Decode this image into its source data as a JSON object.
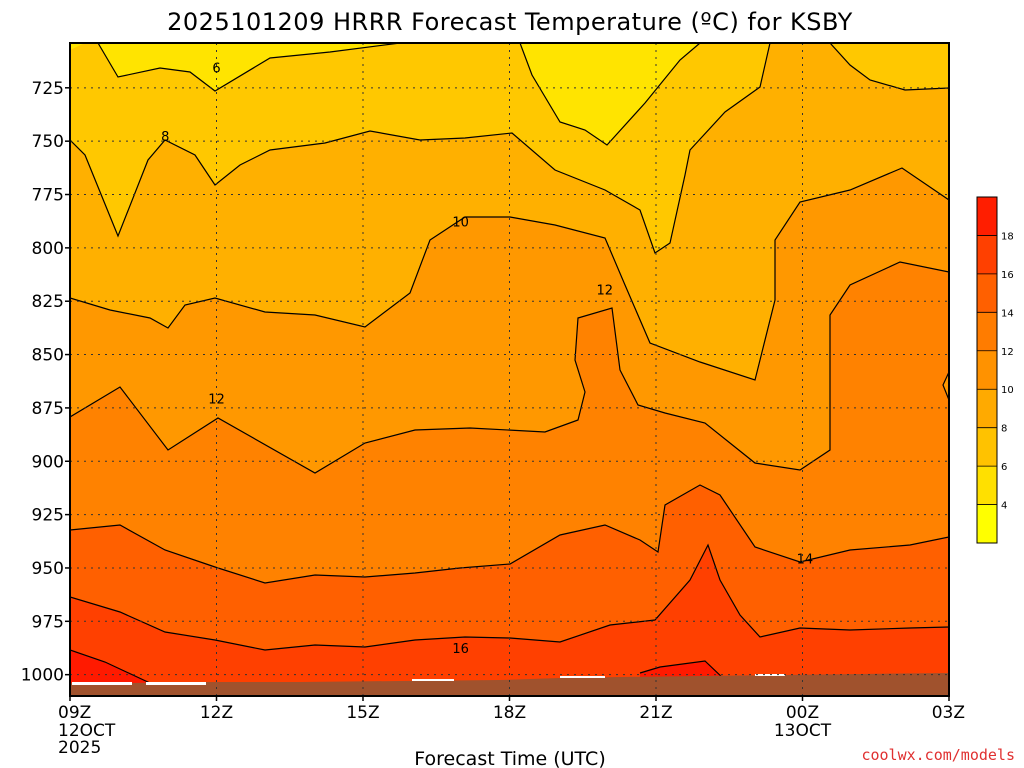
{
  "chart_data": {
    "type": "contour",
    "title": "2025101209 HRRR Forecast Temperature (ºC) for KSBY",
    "xlabel": "Forecast Time (UTC)",
    "x_ticks": [
      {
        "label": "09Z",
        "sub": [
          "12OCT",
          "2025"
        ]
      },
      {
        "label": "12Z",
        "sub": []
      },
      {
        "label": "15Z",
        "sub": []
      },
      {
        "label": "18Z",
        "sub": []
      },
      {
        "label": "21Z",
        "sub": []
      },
      {
        "label": "00Z",
        "sub": [
          "13OCT"
        ]
      },
      {
        "label": "03Z",
        "sub": []
      }
    ],
    "forecast_hours": [
      0,
      18
    ],
    "y_ticks": [
      "725",
      "750",
      "775",
      "800",
      "825",
      "850",
      "875",
      "900",
      "925",
      "950",
      "975",
      "1000"
    ],
    "ylim_hpa": [
      704,
      1010
    ],
    "y_axis_inverted": true,
    "grid": true,
    "contour_levels": [
      6,
      8,
      10,
      12,
      14,
      16,
      18
    ],
    "contour_labels": [
      {
        "text": "6",
        "time_h": 3.0,
        "p": 716
      },
      {
        "text": "8",
        "time_h": 1.95,
        "p": 748
      },
      {
        "text": "10",
        "time_h": 8.0,
        "p": 788
      },
      {
        "text": "12",
        "time_h": 10.95,
        "p": 820
      },
      {
        "text": "12",
        "time_h": 3.0,
        "p": 871
      },
      {
        "text": "14",
        "time_h": 15.05,
        "p": 946
      },
      {
        "text": "16",
        "time_h": 8.0,
        "p": 988
      }
    ],
    "colorbar": {
      "ticks": [
        "4",
        "6",
        "8",
        "10",
        "12",
        "14",
        "16",
        "18"
      ],
      "bands": [
        "#ffff00",
        "#ffe000",
        "#ffc200",
        "#ffaa00",
        "#ff9200",
        "#ff7c00",
        "#ff6000",
        "#ff4000",
        "#ff1e00"
      ]
    },
    "fill_colors": {
      "lt6": "#ffe400",
      "6to8": "#ffc800",
      "8to10": "#ffb000",
      "10to12": "#ff9800",
      "12to14": "#ff8200",
      "14to16": "#ff6000",
      "16to18": "#ff4000",
      "gt18": "#ff1a00",
      "ground": "#a0522d"
    }
  },
  "credit": "coolwx.com/models"
}
